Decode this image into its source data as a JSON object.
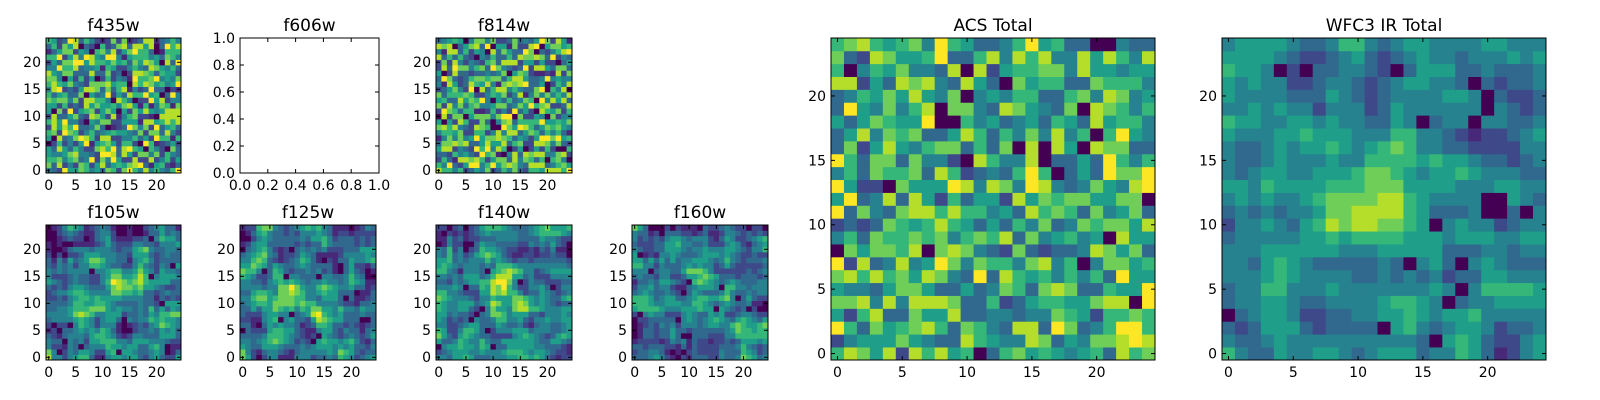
{
  "colormap": "viridis",
  "colors": {
    "viridis": [
      "#440154",
      "#482878",
      "#3e4989",
      "#31688e",
      "#26828e",
      "#1f9e89",
      "#35b779",
      "#6ece58",
      "#b5de2b",
      "#fde725"
    ],
    "axis": "#000000",
    "background": "#ffffff"
  },
  "chart_data": [
    {
      "id": "f435w",
      "type": "heatmap",
      "title": "f435w",
      "grid_size": 25,
      "style": "noise",
      "seed": 435,
      "xticks": [
        "0",
        "5",
        "10",
        "15",
        "20"
      ],
      "yticks": [
        "0",
        "5",
        "10",
        "15",
        "20"
      ],
      "xlim": [
        -0.5,
        24.5
      ],
      "ylim": [
        -0.5,
        24.5
      ]
    },
    {
      "id": "f606w",
      "type": "empty",
      "title": "f606w",
      "xticks": [
        "0.0",
        "0.2",
        "0.4",
        "0.6",
        "0.8",
        "1.0"
      ],
      "yticks": [
        "0.0",
        "0.2",
        "0.4",
        "0.6",
        "0.8",
        "1.0"
      ],
      "xlim": [
        0,
        1
      ],
      "ylim": [
        0,
        1
      ]
    },
    {
      "id": "f814w",
      "type": "heatmap",
      "title": "f814w",
      "grid_size": 25,
      "style": "noise",
      "seed": 814,
      "xticks": [
        "0",
        "5",
        "10",
        "15",
        "20"
      ],
      "yticks": [
        "0",
        "5",
        "10",
        "15",
        "20"
      ],
      "xlim": [
        -0.5,
        24.5
      ],
      "ylim": [
        -0.5,
        24.5
      ]
    },
    {
      "id": "f105w",
      "type": "heatmap",
      "title": "f105w",
      "grid_size": 25,
      "style": "blob",
      "seed": 105,
      "xticks": [
        "0",
        "5",
        "10",
        "15",
        "20"
      ],
      "yticks": [
        "0",
        "5",
        "10",
        "15",
        "20"
      ],
      "xlim": [
        -0.5,
        24.5
      ],
      "ylim": [
        -0.5,
        24.5
      ]
    },
    {
      "id": "f125w",
      "type": "heatmap",
      "title": "f125w",
      "grid_size": 25,
      "style": "blob",
      "seed": 125,
      "xticks": [
        "0",
        "5",
        "10",
        "15",
        "20"
      ],
      "yticks": [
        "0",
        "5",
        "10",
        "15",
        "20"
      ],
      "xlim": [
        -0.5,
        24.5
      ],
      "ylim": [
        -0.5,
        24.5
      ]
    },
    {
      "id": "f140w",
      "type": "heatmap",
      "title": "f140w",
      "grid_size": 25,
      "style": "blob",
      "seed": 140,
      "xticks": [
        "0",
        "5",
        "10",
        "15",
        "20"
      ],
      "yticks": [
        "0",
        "5",
        "10",
        "15",
        "20"
      ],
      "xlim": [
        -0.5,
        24.5
      ],
      "ylim": [
        -0.5,
        24.5
      ]
    },
    {
      "id": "f160w",
      "type": "heatmap",
      "title": "f160w",
      "grid_size": 25,
      "style": "blob",
      "seed": 160,
      "xticks": [
        "0",
        "5",
        "10",
        "15",
        "20"
      ],
      "yticks": [
        "0",
        "5",
        "10",
        "15",
        "20"
      ],
      "xlim": [
        -0.5,
        24.5
      ],
      "ylim": [
        -0.5,
        24.5
      ]
    },
    {
      "id": "acs-total",
      "type": "heatmap",
      "title": "ACS Total",
      "grid_size": 25,
      "style": "total-acs",
      "seed": 77,
      "xticks": [
        "0",
        "5",
        "10",
        "15",
        "20"
      ],
      "yticks": [
        "0",
        "5",
        "10",
        "15",
        "20"
      ],
      "xlim": [
        -0.5,
        24.5
      ],
      "ylim": [
        -0.5,
        24.5
      ]
    },
    {
      "id": "wfc3-ir-total",
      "type": "heatmap",
      "title": "WFC3 IR Total",
      "grid_size": 25,
      "style": "total-ir",
      "seed": 91,
      "xticks": [
        "0",
        "5",
        "10",
        "15",
        "20"
      ],
      "yticks": [
        "0",
        "5",
        "10",
        "15",
        "20"
      ],
      "xlim": [
        -0.5,
        24.5
      ],
      "ylim": [
        -0.5,
        24.5
      ]
    }
  ]
}
